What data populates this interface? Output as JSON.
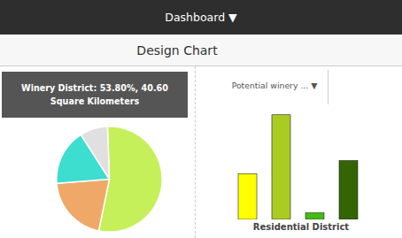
{
  "chart_data": [
    {
      "type": "pie",
      "title": "Design Chart",
      "annotations": [
        "Dashboard ▼",
        "Winery District: 53.80%, 40.60",
        "Square Kilometers"
      ],
      "values": [
        53.8,
        20.5,
        17.2,
        8.5
      ],
      "colors": [
        "#c5f05a",
        "#f0a868",
        "#3dddd0",
        "#e0e0e0"
      ]
    },
    {
      "type": "bar",
      "xlabel": "Residential District",
      "annotations": [
        "Potential winery ... ▼"
      ],
      "categories": [
        null,
        null,
        null,
        null
      ],
      "values": [
        35,
        80,
        5,
        45
      ],
      "colors": [
        "#ffff00",
        "#aacc22",
        "#44bb11",
        "#336600"
      ],
      "ylim": [
        0,
        92
      ],
      "tick_labels": false
    }
  ]
}
